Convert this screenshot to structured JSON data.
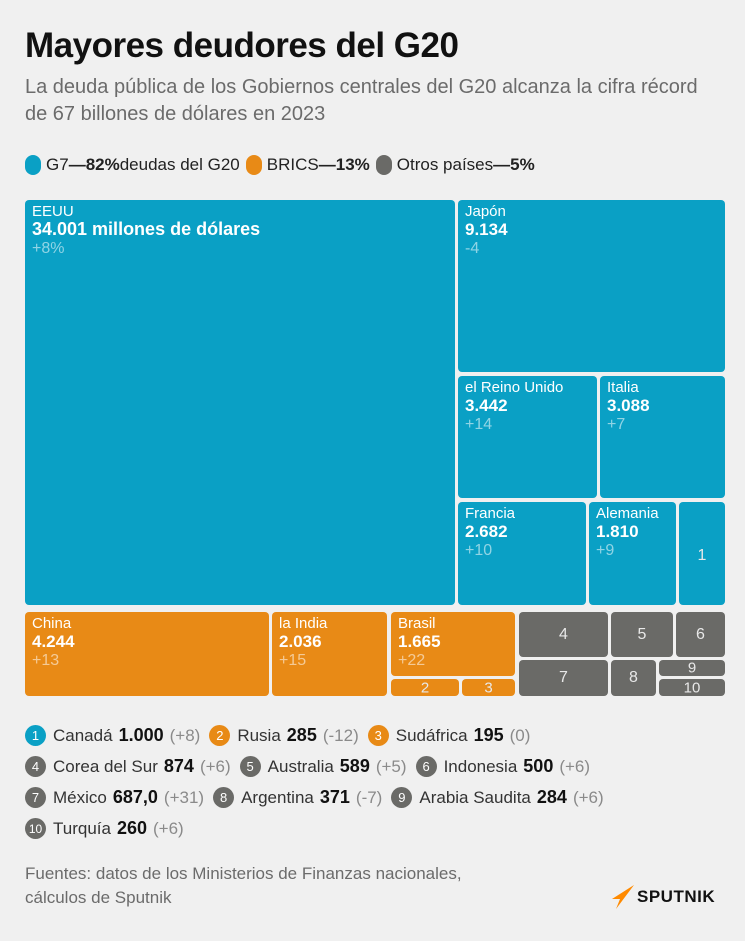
{
  "title": "Mayores deudores del G20",
  "subtitle": "La deuda pública de los Gobiernos centrales del G20 alcanza la cifra récord de 67 billones de dólares en 2023",
  "colors": {
    "g7": "#0aa0c5",
    "brics": "#e88a16",
    "otros": "#6a6a67",
    "background": "#f0f0f0"
  },
  "legend": [
    {
      "name": "G7",
      "dash": "— ",
      "pct": "82%",
      "suffix": "deudas del G20",
      "color": "#0aa0c5"
    },
    {
      "name": "BRICS",
      "dash": "— ",
      "pct": "13%",
      "suffix": "",
      "color": "#e88a16"
    },
    {
      "name": "Otros países",
      "dash": "— ",
      "pct": "5%",
      "suffix": "",
      "color": "#6a6a67"
    }
  ],
  "chart_data": {
    "type": "treemap",
    "title": "Mayores deudores del G20",
    "unit": "millones de dólares",
    "items": [
      {
        "id": "eeuu",
        "group": "G7",
        "label": "EEUU",
        "value_text": "34.001 millones de dólares",
        "value": 34001,
        "change": "+8%"
      },
      {
        "id": "japon",
        "group": "G7",
        "label": "Japón",
        "value_text": "9.134",
        "value": 9134,
        "change": "-4"
      },
      {
        "id": "reino_unido",
        "group": "G7",
        "label": "el Reino Unido",
        "value_text": "3.442",
        "value": 3442,
        "change": "+14"
      },
      {
        "id": "italia",
        "group": "G7",
        "label": "Italia",
        "value_text": "3.088",
        "value": 3088,
        "change": "+7"
      },
      {
        "id": "francia",
        "group": "G7",
        "label": "Francia",
        "value_text": "2.682",
        "value": 2682,
        "change": "+10"
      },
      {
        "id": "alemania",
        "group": "G7",
        "label": "Alemania",
        "value_text": "1.810",
        "value": 1810,
        "change": "+9"
      },
      {
        "id": "china",
        "group": "BRICS",
        "label": "China",
        "value_text": "4.244",
        "value": 4244,
        "change": "+13"
      },
      {
        "id": "india",
        "group": "BRICS",
        "label": "la India",
        "value_text": "2.036",
        "value": 2036,
        "change": "+15"
      },
      {
        "id": "brasil",
        "group": "BRICS",
        "label": "Brasil",
        "value_text": "1.665",
        "value": 1665,
        "change": "+22"
      }
    ],
    "numbered": [
      {
        "num": "1",
        "group": "G7",
        "label": "Canadá",
        "value_text": "1.000",
        "value": 1000,
        "change": "(+8)"
      },
      {
        "num": "2",
        "group": "BRICS",
        "label": "Rusia",
        "value_text": "285",
        "value": 285,
        "change": "(-12)"
      },
      {
        "num": "3",
        "group": "BRICS",
        "label": "Sudáfrica",
        "value_text": "195",
        "value": 195,
        "change": "(0)"
      },
      {
        "num": "4",
        "group": "Otros",
        "label": "Corea del Sur",
        "value_text": "874",
        "value": 874,
        "change": "(+6)"
      },
      {
        "num": "5",
        "group": "Otros",
        "label": "Australia",
        "value_text": "589",
        "value": 589,
        "change": "(+5)"
      },
      {
        "num": "6",
        "group": "Otros",
        "label": "Indonesia",
        "value_text": "500",
        "value": 500,
        "change": "(+6)"
      },
      {
        "num": "7",
        "group": "Otros",
        "label": "México",
        "value_text": "687,0",
        "value": 687.0,
        "change": "(+31)"
      },
      {
        "num": "8",
        "group": "Otros",
        "label": "Argentina",
        "value_text": "371",
        "value": 371,
        "change": "(-7)"
      },
      {
        "num": "9",
        "group": "Otros",
        "label": "Arabia Saudita",
        "value_text": "284",
        "value": 284,
        "change": "(+6)"
      },
      {
        "num": "10",
        "group": "Otros",
        "label": "Turquía",
        "value_text": "260",
        "value": 260,
        "change": "(+6)"
      }
    ]
  },
  "source": {
    "line1": "Fuentes: datos de los Ministerios de Finanzas nacionales,",
    "line2": "cálculos de Sputnik"
  },
  "logo": {
    "text": "SPUTNIK",
    "color": "#ff8a00"
  }
}
